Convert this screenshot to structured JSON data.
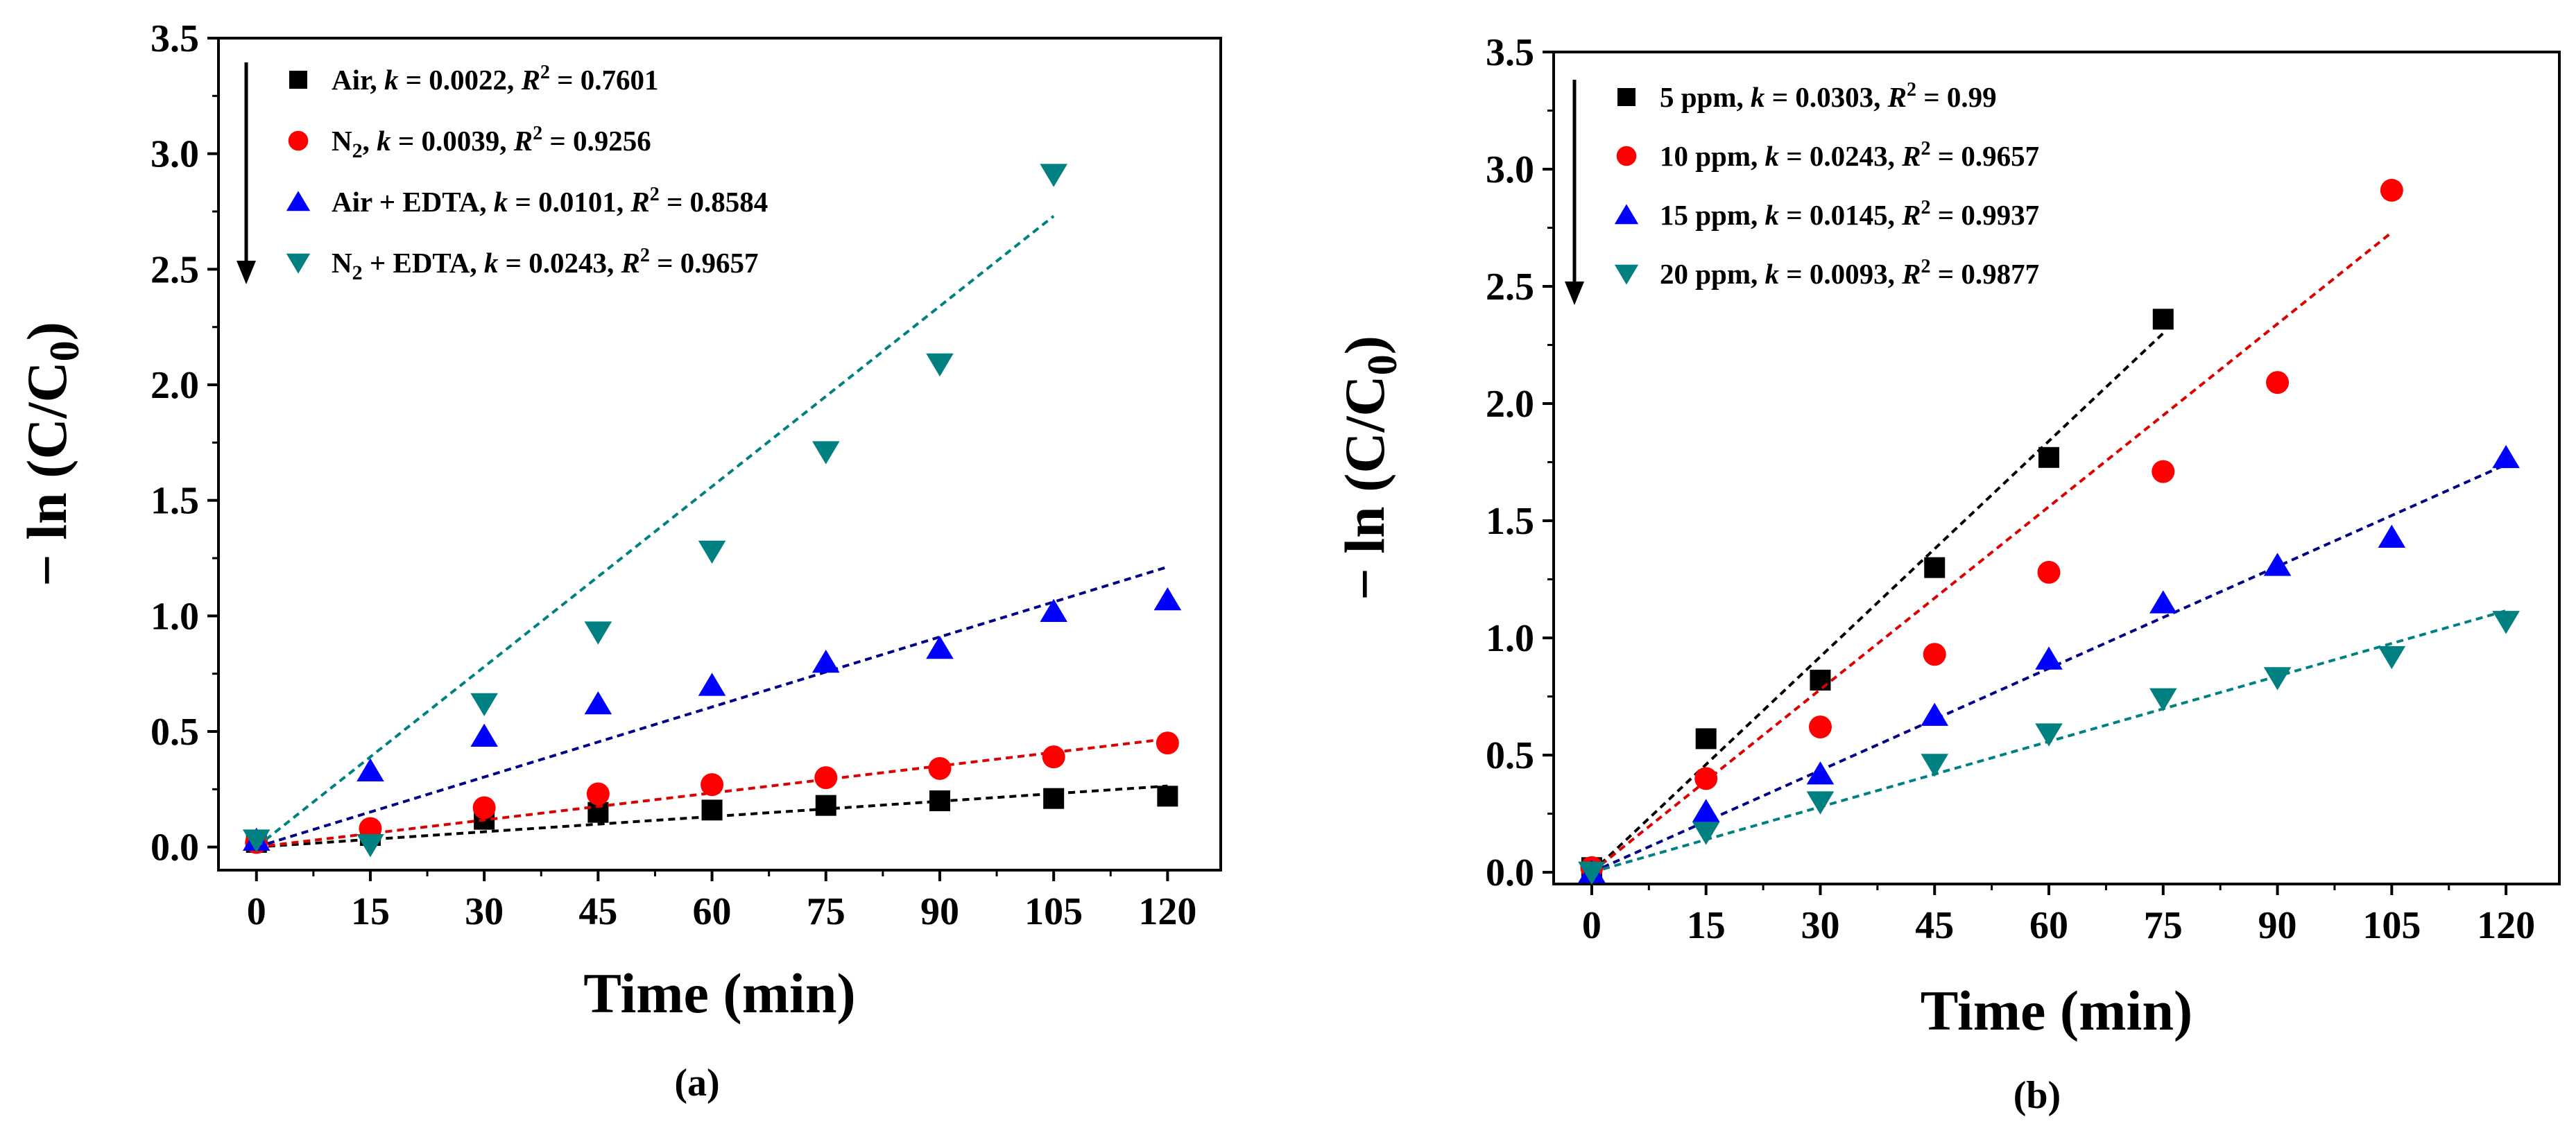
{
  "figure_labels": [
    "(a)",
    "(b)"
  ],
  "chart_data": [
    {
      "type": "scatter",
      "panel": "(a)",
      "title": "",
      "xlabel": "Time (min)",
      "ylabel": "− ln (C/C0)",
      "xlim": [
        -5,
        127
      ],
      "ylim": [
        -0.1,
        3.5
      ],
      "xticks": [
        0,
        15,
        30,
        45,
        60,
        75,
        90,
        105,
        120
      ],
      "yticks": [
        0.0,
        0.5,
        1.0,
        1.5,
        2.0,
        2.5,
        3.0,
        3.5
      ],
      "xtick_labels": [
        "0",
        "15",
        "30",
        "45",
        "60",
        "75",
        "90",
        "105",
        "120"
      ],
      "ytick_labels": [
        "0.0",
        "0.5",
        "1.0",
        "1.5",
        "2.0",
        "2.5",
        "3.0",
        "3.5"
      ],
      "legend_position": "top-left",
      "legend_arrow": "down",
      "series": [
        {
          "name": "Air",
          "k": "0.0022",
          "r2": "0.7601",
          "marker": "square",
          "color": "#000000",
          "line_color": "#000000",
          "x": [
            0,
            15,
            30,
            45,
            60,
            75,
            90,
            105,
            120
          ],
          "y": [
            0.02,
            0.05,
            0.12,
            0.15,
            0.16,
            0.18,
            0.2,
            0.21,
            0.22
          ],
          "fit": {
            "x": [
              0,
              120
            ],
            "y": [
              0.0,
              0.264
            ]
          }
        },
        {
          "name": "N2",
          "k": "0.0039",
          "r2": "0.9256",
          "marker": "circle",
          "color": "#ff0000",
          "line_color": "#dd0000",
          "x": [
            0,
            15,
            30,
            45,
            60,
            75,
            90,
            105,
            120
          ],
          "y": [
            0.02,
            0.08,
            0.17,
            0.23,
            0.27,
            0.3,
            0.34,
            0.39,
            0.45
          ],
          "fit": {
            "x": [
              0,
              120
            ],
            "y": [
              0.0,
              0.468
            ]
          }
        },
        {
          "name": "Air + EDTA",
          "k": "0.0101",
          "r2": "0.8584",
          "marker": "triangle-up",
          "color": "#0000ff",
          "line_color": "#00008b",
          "x": [
            0,
            15,
            30,
            45,
            60,
            75,
            90,
            105,
            120
          ],
          "y": [
            0.03,
            0.33,
            0.48,
            0.62,
            0.7,
            0.8,
            0.86,
            1.02,
            1.07
          ],
          "fit": {
            "x": [
              0,
              120
            ],
            "y": [
              0.0,
              1.212
            ]
          }
        },
        {
          "name": "N2 + EDTA",
          "k": "0.0243",
          "r2": "0.9657",
          "marker": "triangle-down",
          "color": "#008080",
          "line_color": "#008080",
          "x": [
            0,
            15,
            30,
            45,
            60,
            75,
            90,
            105
          ],
          "y": [
            0.03,
            0.01,
            0.62,
            0.93,
            1.28,
            1.71,
            2.09,
            2.91
          ],
          "fit": {
            "x": [
              0,
              105
            ],
            "y": [
              0.0,
              2.73
            ]
          }
        }
      ]
    },
    {
      "type": "scatter",
      "panel": "(b)",
      "title": "",
      "xlabel": "Time (min)",
      "ylabel": "− ln (C/C0)",
      "xlim": [
        -5,
        127
      ],
      "ylim": [
        -0.05,
        3.5
      ],
      "xticks": [
        0,
        15,
        30,
        45,
        60,
        75,
        90,
        105,
        120
      ],
      "yticks": [
        0.0,
        0.5,
        1.0,
        1.5,
        2.0,
        2.5,
        3.0,
        3.5
      ],
      "xtick_labels": [
        "0",
        "15",
        "30",
        "45",
        "60",
        "75",
        "90",
        "105",
        "120"
      ],
      "ytick_labels": [
        "0.0",
        "0.5",
        "1.0",
        "1.5",
        "2.0",
        "2.5",
        "3.0",
        "3.5"
      ],
      "legend_position": "top-left",
      "legend_arrow": "down",
      "series": [
        {
          "name": "5 ppm",
          "k": "0.0303",
          "r2": "0.99",
          "marker": "square",
          "color": "#000000",
          "line_color": "#000000",
          "x": [
            0,
            15,
            30,
            45,
            60,
            75
          ],
          "y": [
            0.02,
            0.57,
            0.82,
            1.3,
            1.77,
            2.36
          ],
          "fit": {
            "x": [
              0,
              75
            ],
            "y": [
              0.0,
              2.3
            ]
          }
        },
        {
          "name": "10 ppm",
          "k": "0.0243",
          "r2": "0.9657",
          "marker": "circle",
          "color": "#ff0000",
          "line_color": "#dd0000",
          "x": [
            0,
            15,
            30,
            45,
            60,
            75,
            90,
            105
          ],
          "y": [
            0.02,
            0.4,
            0.62,
            0.93,
            1.28,
            1.71,
            2.09,
            2.91
          ],
          "fit": {
            "x": [
              0,
              105
            ],
            "y": [
              0.0,
              2.73
            ]
          }
        },
        {
          "name": "15 ppm",
          "k": "0.0145",
          "r2": "0.9937",
          "marker": "triangle-up",
          "color": "#0000ff",
          "line_color": "#00008b",
          "x": [
            0,
            15,
            30,
            45,
            60,
            75,
            90,
            105,
            120
          ],
          "y": [
            0.0,
            0.26,
            0.42,
            0.67,
            0.91,
            1.15,
            1.31,
            1.43,
            1.77
          ],
          "fit": {
            "x": [
              0,
              120
            ],
            "y": [
              0.0,
              1.74
            ]
          }
        },
        {
          "name": "20 ppm",
          "k": "0.0093",
          "r2": "0.9877",
          "marker": "triangle-down",
          "color": "#008080",
          "line_color": "#008080",
          "x": [
            0,
            15,
            30,
            45,
            60,
            75,
            90,
            105,
            120
          ],
          "y": [
            0.0,
            0.17,
            0.3,
            0.46,
            0.59,
            0.74,
            0.83,
            0.92,
            1.07
          ],
          "fit": {
            "x": [
              0,
              120
            ],
            "y": [
              0.0,
              1.116
            ]
          }
        }
      ]
    }
  ]
}
